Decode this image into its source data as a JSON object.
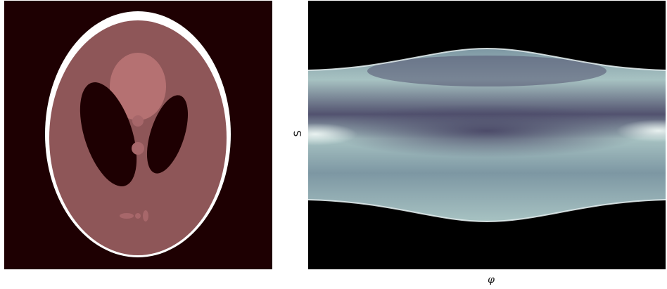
{
  "figure": {
    "left_panel": {
      "kind": "phantom-image",
      "icon": "head-phantom-image",
      "colors": {
        "background": "#1e0002",
        "outer_ring": "#ffffff",
        "tissue": "#8e5658",
        "light_region": "#b57172",
        "dark_region": "#1e0002",
        "small_spot": "#a7676a"
      }
    },
    "right_panel": {
      "kind": "sinogram-image",
      "icon": "sinogram-image",
      "ylabel": "S",
      "xlabel": "φ",
      "colors": {
        "background": "#000000",
        "band_light": "#a7c2c2",
        "band_mid": "#7d97a3",
        "band_dark": "#52526f",
        "edge": "#e6f1f2"
      }
    }
  }
}
